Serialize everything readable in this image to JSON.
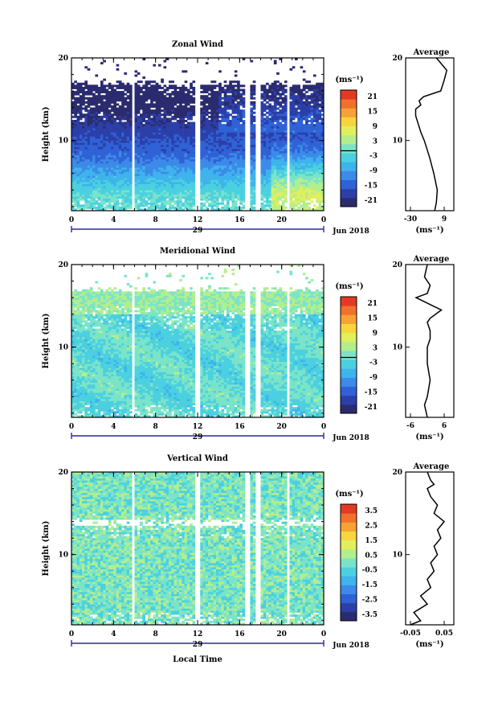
{
  "figure": {
    "xlabel": "Local Time",
    "date_label": "Jun 2018",
    "day_label": "29",
    "avg_title": "Average",
    "ylabel": "Height (km)",
    "unit": "(ms⁻¹)"
  },
  "chart_data": [
    {
      "type": "heatmap",
      "title": "Zonal Wind",
      "quantity": "zonal",
      "xlabel": "",
      "ylabel": "Height (km)",
      "xlim": [
        0,
        24
      ],
      "ylim": [
        1.5,
        20
      ],
      "xticks": [
        "0",
        "4",
        "8",
        "12",
        "16",
        "20",
        "0"
      ],
      "yticks": [
        "10",
        "20"
      ],
      "gaps": [
        [
          5.8,
          6.0
        ],
        [
          11.7,
          12.3
        ],
        [
          16.6,
          16.9
        ],
        [
          17.6,
          18.0
        ],
        [
          20.5,
          20.8
        ]
      ],
      "colorbar": {
        "label": "(ms⁻¹)",
        "ticks": [
          "21",
          "15",
          "9",
          "3",
          "-3",
          "-9",
          "-15",
          "-21"
        ],
        "zero_line": true
      },
      "average_profile": {
        "title": "Average",
        "xlabel": "(ms⁻¹)",
        "xticks": [
          "-30",
          "9"
        ],
        "yticks": [
          "10",
          "20"
        ],
        "x": [
          -2,
          0,
          1,
          -3,
          -8,
          -14,
          -18,
          -21,
          -24,
          -24,
          -18,
          -20,
          -15,
          5,
          9,
          12,
          0
        ],
        "y": [
          1.5,
          2.5,
          4,
          6,
          8,
          10,
          11,
          12,
          13,
          13.8,
          14.3,
          14.8,
          15.3,
          16,
          17.3,
          18.5,
          20
        ]
      }
    },
    {
      "type": "heatmap",
      "title": "Meridional Wind",
      "quantity": "meridional",
      "xlabel": "",
      "ylabel": "Height (km)",
      "xlim": [
        0,
        24
      ],
      "ylim": [
        1.5,
        20
      ],
      "xticks": [
        "0",
        "4",
        "8",
        "12",
        "16",
        "20",
        "0"
      ],
      "yticks": [
        "10",
        "20"
      ],
      "gaps": [
        [
          5.8,
          6.0
        ],
        [
          11.7,
          12.3
        ],
        [
          16.6,
          16.9
        ],
        [
          17.6,
          18.0
        ],
        [
          20.5,
          20.8
        ]
      ],
      "colorbar": {
        "label": "(ms⁻¹)",
        "ticks": [
          "21",
          "15",
          "9",
          "3",
          "-3",
          "-9",
          "-15",
          "-21"
        ],
        "zero_line": true
      },
      "average_profile": {
        "title": "Average",
        "xlabel": "(ms⁻¹)",
        "xticks": [
          "-6",
          "6"
        ],
        "yticks": [
          "10",
          "20"
        ],
        "x": [
          0,
          -1,
          0,
          1,
          0,
          0,
          1,
          1,
          0,
          1,
          3,
          5,
          2,
          -4,
          0,
          1,
          -1,
          0
        ],
        "y": [
          1.5,
          3,
          4,
          6,
          8,
          10,
          11,
          12,
          13,
          13.5,
          14,
          14.5,
          15,
          16,
          16.5,
          17.5,
          18.5,
          20
        ]
      }
    },
    {
      "type": "heatmap",
      "title": "Vertical Wind",
      "quantity": "vertical",
      "xlabel": "Local Time",
      "ylabel": "Height (km)",
      "xlim": [
        0,
        24
      ],
      "ylim": [
        1.5,
        20
      ],
      "xticks": [
        "0",
        "4",
        "8",
        "12",
        "16",
        "20",
        "0"
      ],
      "yticks": [
        "10",
        "20"
      ],
      "gaps": [
        [
          5.8,
          6.0
        ],
        [
          11.7,
          12.3
        ],
        [
          16.6,
          16.9
        ],
        [
          17.6,
          18.0
        ],
        [
          20.5,
          20.8
        ]
      ],
      "colorbar": {
        "label": "(ms⁻¹)",
        "ticks": [
          "3.5",
          "2.5",
          "1.5",
          "0.5",
          "-0.5",
          "-1.5",
          "-2.5",
          "-3.5"
        ],
        "zero_line": false
      },
      "average_profile": {
        "title": "Average",
        "xlabel": "(ms⁻¹)",
        "xticks": [
          "-0.05",
          "0.05"
        ],
        "yticks": [
          "10",
          "20"
        ],
        "x": [
          -0.05,
          -0.02,
          -0.04,
          0.0,
          -0.02,
          0.01,
          0.0,
          0.02,
          0.01,
          0.03,
          0.02,
          0.04,
          0.03,
          0.05,
          0.02,
          0.03,
          0.01,
          0.0,
          0.02,
          0.01,
          0.0
        ],
        "y": [
          1.5,
          2,
          3,
          4,
          5,
          6,
          7,
          8,
          9,
          10,
          11,
          12,
          13,
          14,
          15,
          16,
          17,
          18,
          18.5,
          19,
          20
        ]
      }
    }
  ]
}
